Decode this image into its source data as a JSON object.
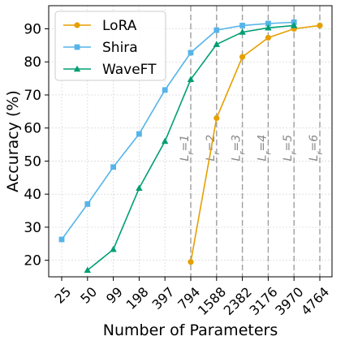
{
  "chart_data": {
    "type": "line",
    "title": "",
    "xlabel": "Number of Parameters",
    "ylabel": "Accuracy (%)",
    "categories": [
      "25",
      "50",
      "99",
      "198",
      "397",
      "794",
      "1588",
      "2382",
      "3176",
      "3970",
      "4764"
    ],
    "yticks": [
      "20",
      "30",
      "40",
      "50",
      "60",
      "70",
      "80",
      "90"
    ],
    "ylim": [
      15,
      97
    ],
    "grid": true,
    "legend_position": "top-left",
    "series": [
      {
        "name": "LoRA",
        "color": "#E69F00",
        "marker": "circle",
        "values": [
          null,
          null,
          null,
          null,
          null,
          19.5,
          63.0,
          81.5,
          87.3,
          90.0,
          91.0
        ]
      },
      {
        "name": "Shira",
        "color": "#56B4E9",
        "marker": "square",
        "values": [
          26.3,
          37.0,
          48.2,
          58.2,
          71.5,
          82.8,
          89.6,
          91.0,
          91.6,
          92.0,
          null
        ]
      },
      {
        "name": "WaveFT",
        "color": "#009E73",
        "marker": "triangle",
        "values": [
          null,
          17.0,
          23.3,
          41.8,
          56.0,
          74.7,
          85.3,
          89.0,
          90.3,
          91.0,
          null
        ]
      }
    ],
    "vertical_lines": [
      {
        "category": "794",
        "label": "L_r=1"
      },
      {
        "category": "1588",
        "label": "L_r=2"
      },
      {
        "category": "2382",
        "label": "L_r=3"
      },
      {
        "category": "3176",
        "label": "L_r=4"
      },
      {
        "category": "3970",
        "label": "L_r=5"
      },
      {
        "category": "4764",
        "label": "L_r=6"
      }
    ]
  }
}
